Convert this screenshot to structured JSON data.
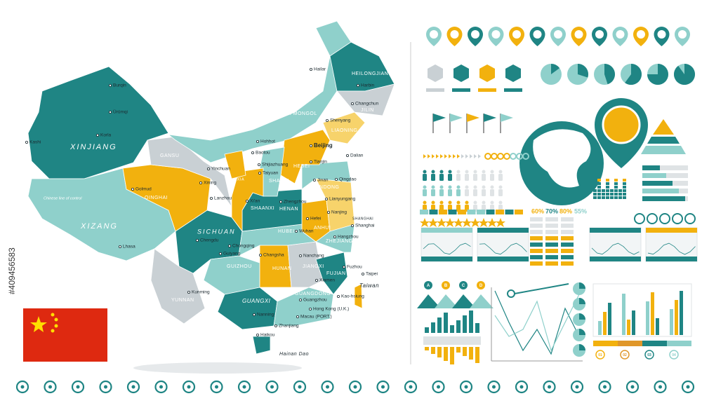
{
  "watermark_id": "#409456583",
  "map": {
    "provinces": [
      "XINJIANG",
      "XIZANG",
      "QINGHAI",
      "GANSU",
      "SICHUAN",
      "NEI MONGOL",
      "HEILONGJIANG",
      "JILIN",
      "LIAONING",
      "HEBEI",
      "SHANXI",
      "SHAANXI",
      "NINGXIA",
      "HENAN",
      "SHANDONG",
      "HUBEI",
      "ANHUI",
      "ZHEJIANG",
      "SHANGHAI",
      "HUNAN",
      "JIANGXI",
      "FUJIAN",
      "GUANGDONG",
      "GUANGXI",
      "GUIZHOU",
      "YUNNAN",
      "Taiwan",
      "Hainan Dao"
    ],
    "cities": [
      "Hailar",
      "Harbin",
      "Changchun",
      "Shenyang",
      "Dalian",
      "Beijing",
      "Tianjin",
      "Hohhot",
      "Baotou",
      "Yinchuan",
      "Shijiazhuang",
      "Taiyuan",
      "Jinan",
      "Qingdao",
      "Lianyungang",
      "Xining",
      "Lanzhou",
      "Xi'an",
      "Zhengzhou",
      "Nanjing",
      "Hefei",
      "Shanghai",
      "Hangzhou",
      "Wuhan",
      "Chengdu",
      "Chongqing",
      "Changsha",
      "Nanchang",
      "Fuzhou",
      "Taipei",
      "Xiamen",
      "Kao-hsiung",
      "Guiyang",
      "Kunming",
      "Nanning",
      "Guangzhou",
      "Hong Kong (U.K.)",
      "Macau (PORT.)",
      "Zhanjiang",
      "Haikou",
      "Lhasa",
      "Golmud",
      "Kashi",
      "Korla",
      "Ürümqi",
      "Burqin"
    ],
    "note": "Chinese line of control"
  },
  "infographic": {
    "percentages": [
      "60%",
      "70%",
      "80%",
      "55%"
    ],
    "markers": [
      "A",
      "B",
      "C",
      "D"
    ],
    "steps": [
      "01",
      "02",
      "03",
      "04"
    ]
  }
}
